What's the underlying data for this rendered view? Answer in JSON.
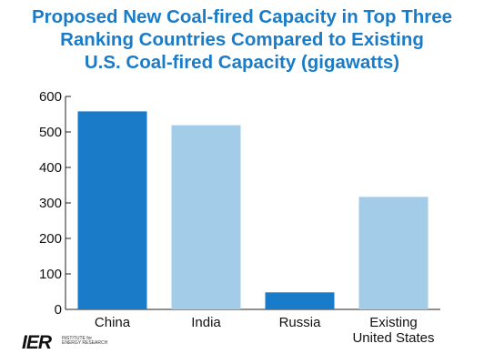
{
  "title_lines": [
    "Proposed New Coal-fired Capacity in Top Three",
    "Ranking Countries Compared to Existing",
    "U.S. Coal-fired Capacity (gigawatts)"
  ],
  "logo": {
    "mark": "IER",
    "sub_lines": [
      "INSTITUTE for",
      "ENERGY RESEARCH"
    ]
  },
  "colors": {
    "title": "#1a7cc8",
    "dark_bar": "#1a7cc8",
    "light_bar": "#a3cce8"
  },
  "chart_data": {
    "type": "bar",
    "title": "Proposed New Coal-fired Capacity in Top Three Ranking Countries Compared to Existing U.S. Coal-fired Capacity (gigawatts)",
    "categories": [
      [
        "China"
      ],
      [
        "India"
      ],
      [
        "Russia"
      ],
      [
        "Existing",
        "United States"
      ]
    ],
    "values": [
      558,
      519,
      48,
      317
    ],
    "bar_colors": [
      "#1a7cc8",
      "#a3cce8",
      "#1a7cc8",
      "#a3cce8"
    ],
    "yticks": [
      0,
      100,
      200,
      300,
      400,
      500,
      600
    ],
    "ylim": [
      0,
      600
    ],
    "xlabel": "",
    "ylabel": "",
    "grid": false
  }
}
